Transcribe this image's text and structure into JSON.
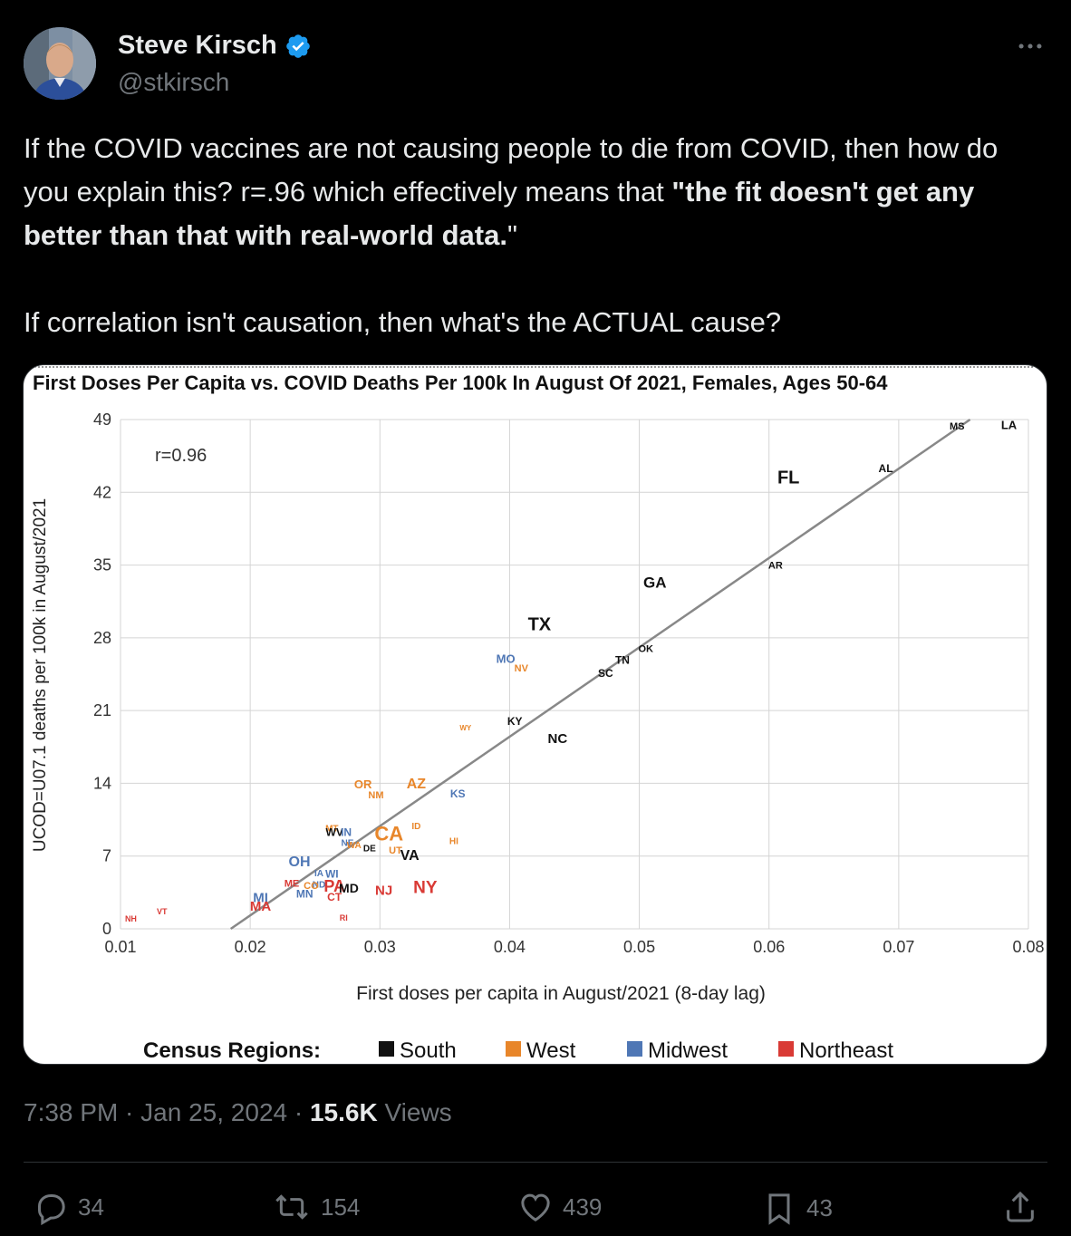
{
  "author": {
    "name": "Steve Kirsch",
    "handle": "@stkirsch",
    "verified": true
  },
  "tweet": {
    "line1": "If the COVID vaccines are not causing people to die from COVID, then how do you explain this? r=.96 which effectively means that ",
    "bold_quote": "\"the fit doesn't get any better than that with real-world data.",
    "closing_quote": "\"",
    "line2": "If correlation isn't causation, then what's the ACTUAL cause?"
  },
  "meta": {
    "time": "7:38 PM",
    "date": "Jan 25, 2024",
    "views_count": "15.6K",
    "views_label": "Views"
  },
  "actions": {
    "replies": "34",
    "reposts": "154",
    "likes": "439",
    "bookmarks": "43"
  },
  "colors": {
    "South": "#111111",
    "West": "#e8862a",
    "Midwest": "#4f77b5",
    "Northeast": "#d93a35",
    "accent_verified": "#1d9bf0"
  },
  "chart_data": {
    "type": "scatter",
    "title": "First Doses Per Capita vs. COVID Deaths Per 100k In August Of 2021, Females, Ages 50-64",
    "xlabel": "First doses per capita in August/2021 (8-day lag)",
    "ylabel": "UCOD=U07.1 deaths per 100k in August/2021",
    "xlim": [
      0.01,
      0.08
    ],
    "ylim": [
      0,
      49
    ],
    "xticks": [
      "0.01",
      "0.02",
      "0.03",
      "0.04",
      "0.05",
      "0.06",
      "0.07",
      "0.08"
    ],
    "yticks": [
      "0",
      "7",
      "14",
      "21",
      "28",
      "35",
      "42",
      "49"
    ],
    "annotation": "r=0.96",
    "grid": true,
    "trendline": [
      [
        0.0185,
        0
      ],
      [
        0.0755,
        49
      ]
    ],
    "legend_title": "Census Regions:",
    "legend": [
      "South",
      "West",
      "Midwest",
      "Northeast"
    ],
    "points": [
      {
        "label": "LA",
        "x": 0.0785,
        "y": 48.4,
        "region": "South",
        "size": 13
      },
      {
        "label": "MS",
        "x": 0.0745,
        "y": 48.3,
        "region": "South",
        "size": 11
      },
      {
        "label": "AL",
        "x": 0.069,
        "y": 44.2,
        "region": "South",
        "size": 12
      },
      {
        "label": "FL",
        "x": 0.0615,
        "y": 43.3,
        "region": "South",
        "size": 20
      },
      {
        "label": "AR",
        "x": 0.0605,
        "y": 34.9,
        "region": "South",
        "size": 11
      },
      {
        "label": "GA",
        "x": 0.0512,
        "y": 33.2,
        "region": "South",
        "size": 17
      },
      {
        "label": "TX",
        "x": 0.0423,
        "y": 29.2,
        "region": "South",
        "size": 20
      },
      {
        "label": "OK",
        "x": 0.0505,
        "y": 26.9,
        "region": "South",
        "size": 11
      },
      {
        "label": "TN",
        "x": 0.0487,
        "y": 25.8,
        "region": "South",
        "size": 12
      },
      {
        "label": "SC",
        "x": 0.0474,
        "y": 24.5,
        "region": "South",
        "size": 12
      },
      {
        "label": "MO",
        "x": 0.0397,
        "y": 25.9,
        "region": "Midwest",
        "size": 13
      },
      {
        "label": "NV",
        "x": 0.0409,
        "y": 25.0,
        "region": "West",
        "size": 11
      },
      {
        "label": "KY",
        "x": 0.0404,
        "y": 19.9,
        "region": "South",
        "size": 12
      },
      {
        "label": "NC",
        "x": 0.0437,
        "y": 18.2,
        "region": "South",
        "size": 15
      },
      {
        "label": "WY",
        "x": 0.0366,
        "y": 19.3,
        "region": "West",
        "size": 8
      },
      {
        "label": "OR",
        "x": 0.0287,
        "y": 13.8,
        "region": "West",
        "size": 13
      },
      {
        "label": "NM",
        "x": 0.0297,
        "y": 12.8,
        "region": "West",
        "size": 11
      },
      {
        "label": "AZ",
        "x": 0.0328,
        "y": 13.9,
        "region": "West",
        "size": 16
      },
      {
        "label": "KS",
        "x": 0.036,
        "y": 12.9,
        "region": "Midwest",
        "size": 12
      },
      {
        "label": "ID",
        "x": 0.0328,
        "y": 9.8,
        "region": "West",
        "size": 10
      },
      {
        "label": "HI",
        "x": 0.0357,
        "y": 8.4,
        "region": "West",
        "size": 10
      },
      {
        "label": "CA",
        "x": 0.0307,
        "y": 9.0,
        "region": "West",
        "size": 22
      },
      {
        "label": "UT",
        "x": 0.0312,
        "y": 7.5,
        "region": "West",
        "size": 11
      },
      {
        "label": "VA",
        "x": 0.0323,
        "y": 7.0,
        "region": "South",
        "size": 16
      },
      {
        "label": "DE",
        "x": 0.0292,
        "y": 7.7,
        "region": "South",
        "size": 10
      },
      {
        "label": "MT",
        "x": 0.0263,
        "y": 9.6,
        "region": "West",
        "size": 10
      },
      {
        "label": "WV",
        "x": 0.0265,
        "y": 9.2,
        "region": "South",
        "size": 12
      },
      {
        "label": "IN",
        "x": 0.0274,
        "y": 9.2,
        "region": "Midwest",
        "size": 12
      },
      {
        "label": "NE",
        "x": 0.0275,
        "y": 8.2,
        "region": "Midwest",
        "size": 10
      },
      {
        "label": "WA",
        "x": 0.028,
        "y": 8.0,
        "region": "West",
        "size": 10
      },
      {
        "label": "OH",
        "x": 0.0238,
        "y": 6.4,
        "region": "Midwest",
        "size": 16
      },
      {
        "label": "IA",
        "x": 0.0253,
        "y": 5.3,
        "region": "Midwest",
        "size": 10
      },
      {
        "label": "WI",
        "x": 0.0263,
        "y": 5.2,
        "region": "Midwest",
        "size": 12
      },
      {
        "label": "ND",
        "x": 0.0253,
        "y": 4.2,
        "region": "Midwest",
        "size": 10
      },
      {
        "label": "ME",
        "x": 0.0232,
        "y": 4.3,
        "region": "Northeast",
        "size": 11
      },
      {
        "label": "CO",
        "x": 0.0247,
        "y": 4.1,
        "region": "West",
        "size": 11
      },
      {
        "label": "PA",
        "x": 0.0265,
        "y": 4.0,
        "region": "Northeast",
        "size": 18
      },
      {
        "label": "MD",
        "x": 0.0276,
        "y": 3.8,
        "region": "South",
        "size": 14
      },
      {
        "label": "MN",
        "x": 0.0242,
        "y": 3.3,
        "region": "Midwest",
        "size": 12
      },
      {
        "label": "CT",
        "x": 0.0265,
        "y": 3.0,
        "region": "Northeast",
        "size": 12
      },
      {
        "label": "NJ",
        "x": 0.0303,
        "y": 3.6,
        "region": "Northeast",
        "size": 15
      },
      {
        "label": "NY",
        "x": 0.0335,
        "y": 3.9,
        "region": "Northeast",
        "size": 19
      },
      {
        "label": "MI",
        "x": 0.0208,
        "y": 2.9,
        "region": "Midwest",
        "size": 15
      },
      {
        "label": "MA",
        "x": 0.0208,
        "y": 2.1,
        "region": "Northeast",
        "size": 15
      },
      {
        "label": "RI",
        "x": 0.0272,
        "y": 1.0,
        "region": "Northeast",
        "size": 9
      },
      {
        "label": "NH",
        "x": 0.0108,
        "y": 0.9,
        "region": "Northeast",
        "size": 9
      },
      {
        "label": "VT",
        "x": 0.0132,
        "y": 1.6,
        "region": "Northeast",
        "size": 9
      }
    ]
  }
}
